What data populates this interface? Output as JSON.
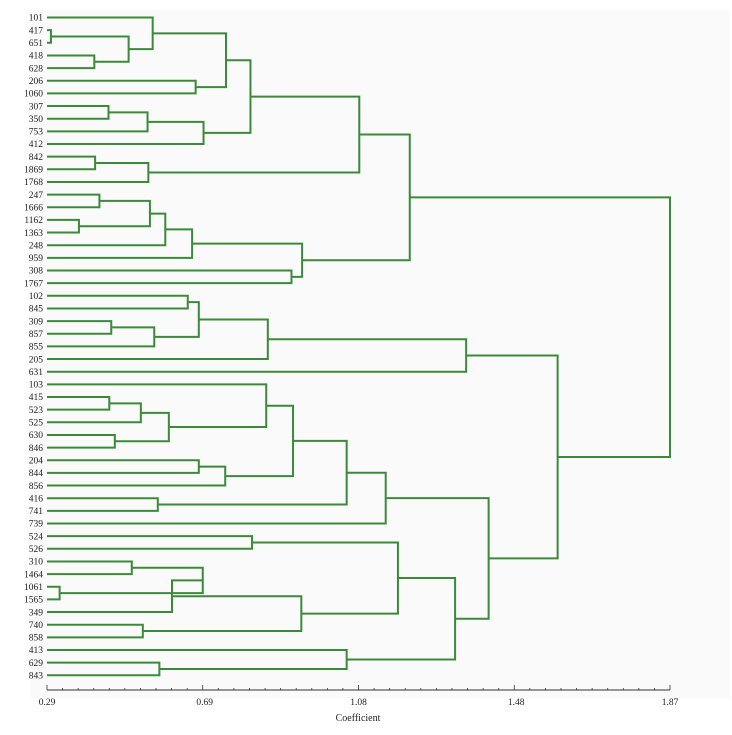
{
  "chart_data": {
    "type": "dendrogram",
    "orientation": "horizontal",
    "title": "",
    "xlabel": "Coefficient",
    "ylabel": "",
    "xlim": [
      0.29,
      1.87
    ],
    "xticks": [
      0.29,
      0.69,
      1.08,
      1.48,
      1.87
    ],
    "xtick_labels": [
      "0.29",
      "0.69",
      "1.08",
      "1.48",
      "1.87"
    ],
    "line_color": "#3a8a3a",
    "background": "#fafafa",
    "leaves": [
      "101",
      "417",
      "651",
      "418",
      "628",
      "206",
      "1060",
      "307",
      "350",
      "753",
      "412",
      "842",
      "1869",
      "1768",
      "247",
      "1666",
      "1162",
      "1363",
      "248",
      "959",
      "308",
      "1767",
      "102",
      "845",
      "309",
      "857",
      "855",
      "205",
      "631",
      "103",
      "415",
      "523",
      "525",
      "630",
      "846",
      "204",
      "844",
      "856",
      "416",
      "741",
      "739",
      "524",
      "526",
      "310",
      "1464",
      "1061",
      "1565",
      "349",
      "740",
      "858",
      "413",
      "629",
      "843"
    ],
    "merges": [
      [
        "417",
        "651",
        0.3
      ],
      [
        "418",
        "628",
        0.41
      ],
      [
        "c0",
        "c1",
        0.497
      ],
      [
        "101",
        "c2",
        0.558
      ],
      [
        "206",
        "1060",
        0.667
      ],
      [
        "c3",
        "c4",
        0.744
      ],
      [
        "307",
        "350",
        0.446
      ],
      [
        "c6",
        "753",
        0.545
      ],
      [
        "c7",
        "412",
        0.687
      ],
      [
        "c5",
        "c8",
        0.806
      ],
      [
        "842",
        "1869",
        0.412
      ],
      [
        "c10",
        "1768",
        0.547
      ],
      [
        "c9",
        "c11",
        1.082
      ],
      [
        "247",
        "1666",
        0.423
      ],
      [
        "1162",
        "1363",
        0.371
      ],
      [
        "c13",
        "c14",
        0.551
      ],
      [
        "c15",
        "248",
        0.59
      ],
      [
        "c16",
        "959",
        0.658
      ],
      [
        "308",
        "1767",
        0.91
      ],
      [
        "c17",
        "c18",
        0.937
      ],
      [
        "c12",
        "c19",
        1.21
      ],
      [
        "102",
        "845",
        0.647
      ],
      [
        "309",
        "857",
        0.453
      ],
      [
        "c22",
        "855",
        0.562
      ],
      [
        "c21",
        "c23",
        0.675
      ],
      [
        "c24",
        "205",
        0.85
      ],
      [
        "c25",
        "631",
        1.353
      ],
      [
        "415",
        "523",
        0.448
      ],
      [
        "c27",
        "525",
        0.528
      ],
      [
        "630",
        "846",
        0.462
      ],
      [
        "c28",
        "c29",
        0.599
      ],
      [
        "103",
        "c30",
        0.846
      ],
      [
        "204",
        "844",
        0.675
      ],
      [
        "c32",
        "856",
        0.742
      ],
      [
        "c31",
        "c33",
        0.914
      ],
      [
        "416",
        "741",
        0.571
      ],
      [
        "c34",
        "c35",
        1.05
      ],
      [
        "c36",
        "739",
        1.149
      ],
      [
        "524",
        "526",
        0.81
      ],
      [
        "1061",
        "1565",
        0.322
      ],
      [
        "310",
        "1464",
        0.505
      ],
      [
        "c40",
        "c39",
        0.685
      ],
      [
        "349",
        "c41",
        0.607
      ],
      [
        "740",
        "858",
        0.533
      ],
      [
        "c42",
        "c43",
        0.935
      ],
      [
        "c38",
        "c44",
        1.18
      ],
      [
        "629",
        "843",
        0.575
      ],
      [
        "413",
        "c46",
        1.05
      ],
      [
        "c45",
        "c47",
        1.325
      ],
      [
        "c37",
        "c48",
        1.41
      ],
      [
        "c26",
        "c49",
        1.585
      ],
      [
        "c20",
        "c50",
        1.87
      ]
    ]
  }
}
